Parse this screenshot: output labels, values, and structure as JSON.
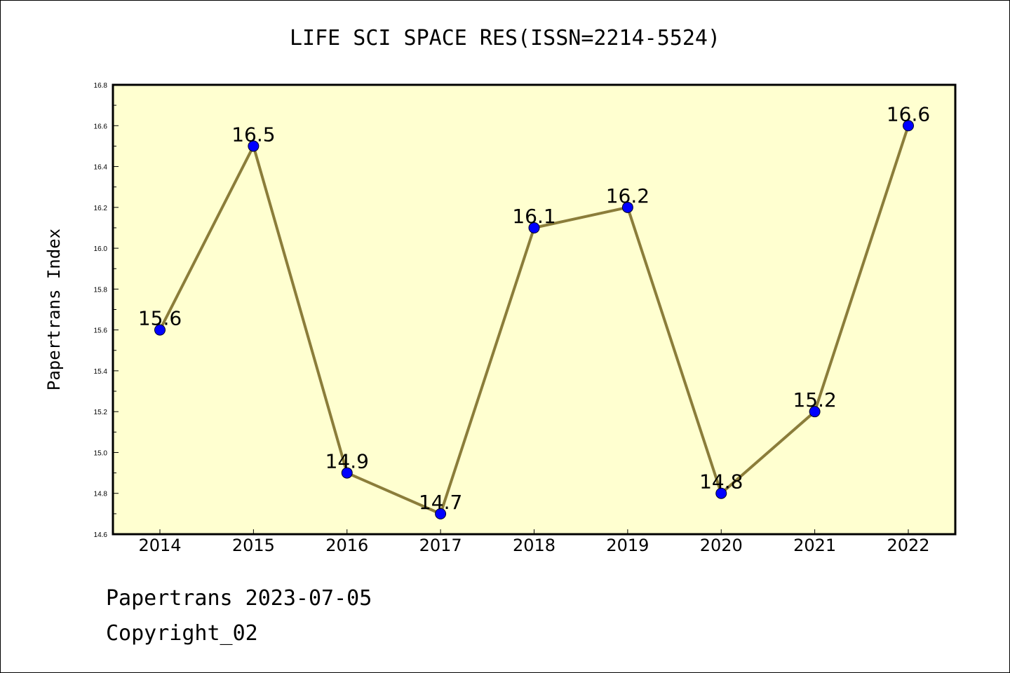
{
  "chart_data": {
    "type": "line",
    "title": "LIFE SCI SPACE RES(ISSN=2214-5524)",
    "xlabel": "",
    "ylabel": "Papertrans Index",
    "categories": [
      "2014",
      "2015",
      "2016",
      "2017",
      "2018",
      "2019",
      "2020",
      "2021",
      "2022"
    ],
    "series": [
      {
        "values": [
          15.6,
          16.5,
          14.9,
          14.7,
          16.1,
          16.2,
          14.8,
          15.2,
          16.6
        ],
        "labels": [
          "15.6",
          "16.5",
          "14.9",
          "14.7",
          "16.1",
          "16.2",
          "14.8",
          "15.2",
          "16.6"
        ],
        "line_color": "#8b7d3a",
        "marker_color": "#0000ff"
      }
    ],
    "ylim": [
      14.6,
      16.8
    ],
    "yticks": [
      "14.6",
      "14.8",
      "15.0",
      "15.2",
      "15.4",
      "15.6",
      "15.8",
      "16.0",
      "16.2",
      "16.4",
      "16.6",
      "16.8"
    ],
    "plot_background": "#ffffd0",
    "grid": false
  },
  "footer": {
    "line1": "Papertrans 2023-07-05",
    "line2": "Copyright_02"
  }
}
